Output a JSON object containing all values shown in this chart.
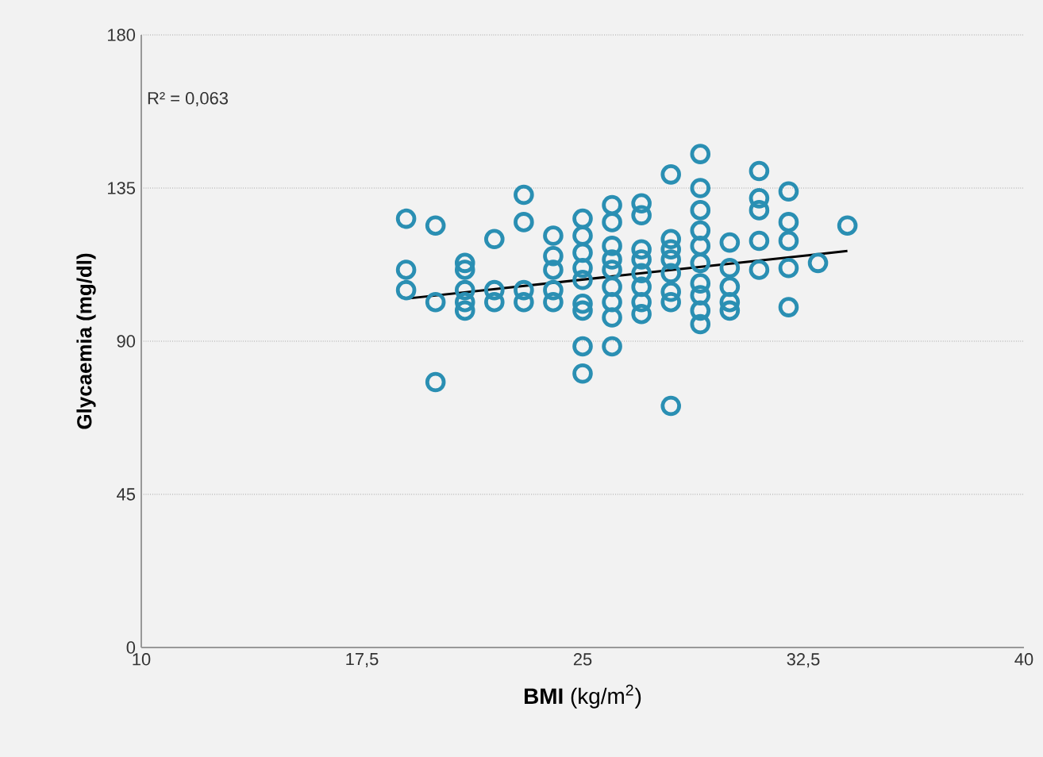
{
  "chart_data": {
    "type": "scatter",
    "xlabel": "**BMI** (kg/m$^{2}$)",
    "ylabel": "Glycaemia (mg/dl)",
    "annotations": [
      "R² = 0,063"
    ],
    "xlim": [
      10,
      40
    ],
    "ylim": [
      0,
      180
    ],
    "xticks": [
      10,
      {
        "value": 17.5,
        "label": "17,5"
      },
      25,
      {
        "value": 32.5,
        "label": "32,5"
      },
      40
    ],
    "yticks": [
      0,
      45,
      90,
      135,
      180
    ],
    "grid": "y",
    "marker": "circle",
    "series": [
      {
        "color": "#2a8fb3",
        "x": [
          19,
          19,
          19,
          20,
          20,
          20,
          21,
          21,
          21,
          21,
          21,
          22,
          22,
          22,
          23,
          23,
          23,
          23,
          24,
          24,
          24,
          24,
          24,
          25,
          25,
          25,
          25,
          25,
          25,
          25,
          25,
          25,
          26,
          26,
          26,
          26,
          26,
          26,
          26,
          26,
          26,
          27,
          27,
          27,
          27,
          27,
          27,
          27,
          27,
          28,
          28,
          28,
          28,
          28,
          28,
          28,
          28,
          29,
          29,
          29,
          29,
          29,
          29,
          29,
          29,
          29,
          29,
          30,
          30,
          30,
          30,
          30,
          31,
          31,
          31,
          31,
          31,
          32,
          32,
          32,
          32,
          32,
          33,
          34
        ],
        "values": [
          126,
          111,
          105,
          124,
          101.5,
          78,
          113,
          111,
          105,
          101.5,
          99,
          120,
          105,
          101.5,
          133,
          125,
          105,
          101.5,
          121,
          115,
          111,
          105,
          101.5,
          126,
          121,
          116,
          111.5,
          108,
          101,
          99,
          88.5,
          80.5,
          130,
          125,
          118,
          114,
          111,
          106,
          101.5,
          97,
          88.5,
          130.5,
          127,
          117,
          114,
          110,
          106,
          101.5,
          98,
          139,
          120,
          117,
          114,
          110,
          104.5,
          101.5,
          71,
          145,
          135,
          128.5,
          122.5,
          118,
          113,
          107,
          103.5,
          99,
          95,
          119,
          111.5,
          106,
          101.5,
          99,
          140,
          132,
          128.5,
          119.5,
          111,
          134,
          125,
          119.5,
          111.5,
          100,
          113,
          124
        ]
      },
      {
        "type": "line",
        "marker": "none",
        "color": "#000000",
        "x": [
          19,
          34
        ],
        "values": [
          102.5,
          116.5
        ]
      }
    ]
  }
}
